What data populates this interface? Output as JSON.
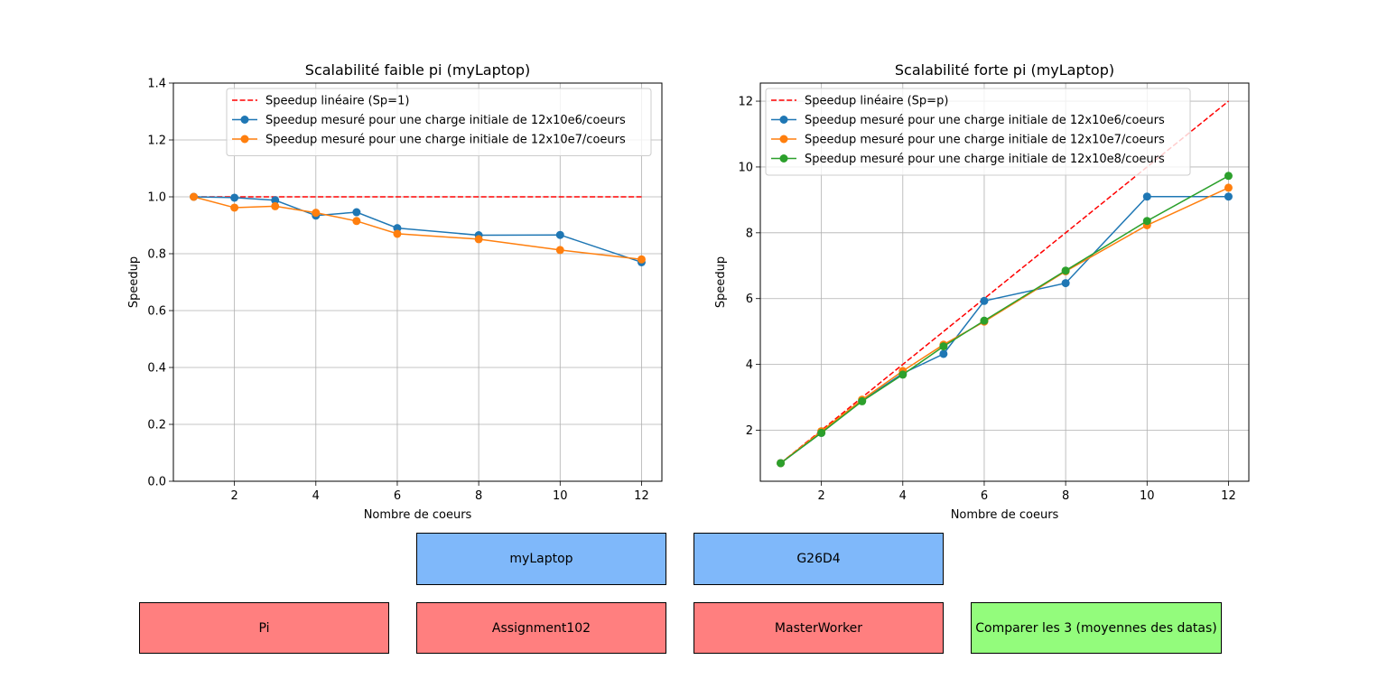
{
  "chart_data": [
    {
      "type": "line",
      "title": "Scalabilité faible pi (myLaptop)",
      "xlabel": "Nombre de coeurs",
      "ylabel": "Speedup",
      "xlim": [
        0.5,
        12.5
      ],
      "ylim": [
        0,
        1.4
      ],
      "xticks": [
        2,
        4,
        6,
        8,
        10,
        12
      ],
      "yticks": [
        0.0,
        0.2,
        0.4,
        0.6,
        0.8,
        1.0,
        1.2,
        1.4
      ],
      "grid": true,
      "legend_position": "top-right",
      "series": [
        {
          "name": "Speedup linéaire (Sp=1)",
          "color": "#ff0000",
          "dashed": true,
          "markers": false,
          "x": [
            1,
            12
          ],
          "y": [
            1.0,
            1.0
          ]
        },
        {
          "name": "Speedup mesuré pour une charge initiale de 12x10e6/coeurs",
          "color": "#1f77b4",
          "dashed": false,
          "markers": true,
          "x": [
            1,
            2,
            3,
            4,
            5,
            6,
            8,
            10,
            12
          ],
          "y": [
            1.0,
            0.997,
            0.988,
            0.934,
            0.946,
            0.89,
            0.865,
            0.866,
            0.77
          ]
        },
        {
          "name": "Speedup mesuré pour une charge initiale de 12x10e7/coeurs",
          "color": "#ff7f0e",
          "dashed": false,
          "markers": true,
          "x": [
            1,
            2,
            3,
            4,
            5,
            6,
            8,
            10,
            12
          ],
          "y": [
            1.0,
            0.962,
            0.967,
            0.944,
            0.915,
            0.87,
            0.851,
            0.813,
            0.78
          ]
        }
      ]
    },
    {
      "type": "line",
      "title": "Scalabilité forte pi (myLaptop)",
      "xlabel": "Nombre de coeurs",
      "ylabel": "Speedup",
      "xlim": [
        0.5,
        12.5
      ],
      "ylim": [
        0.45,
        12.55
      ],
      "xticks": [
        2,
        4,
        6,
        8,
        10,
        12
      ],
      "yticks": [
        2,
        4,
        6,
        8,
        10,
        12
      ],
      "grid": true,
      "legend_position": "top-left",
      "series": [
        {
          "name": "Speedup linéaire (Sp=p)",
          "color": "#ff0000",
          "dashed": true,
          "markers": false,
          "x": [
            1,
            12
          ],
          "y": [
            1,
            12
          ]
        },
        {
          "name": "Speedup mesuré pour une charge initiale de 12x10e6/coeurs",
          "color": "#1f77b4",
          "dashed": false,
          "markers": true,
          "x": [
            1,
            2,
            3,
            4,
            5,
            6,
            8,
            10,
            12
          ],
          "y": [
            1.0,
            1.92,
            2.9,
            3.73,
            4.32,
            5.93,
            6.47,
            9.1,
            9.1
          ]
        },
        {
          "name": "Speedup mesuré pour une charge initiale de 12x10e7/coeurs",
          "color": "#ff7f0e",
          "dashed": false,
          "markers": true,
          "x": [
            1,
            2,
            3,
            4,
            5,
            6,
            8,
            10,
            12
          ],
          "y": [
            1.0,
            1.97,
            2.93,
            3.8,
            4.6,
            5.3,
            6.83,
            8.23,
            9.37
          ]
        },
        {
          "name": "Speedup mesuré pour une charge initiale de 12x10e8/coeurs",
          "color": "#2ca02c",
          "dashed": false,
          "markers": true,
          "x": [
            1,
            2,
            3,
            4,
            5,
            6,
            8,
            10,
            12
          ],
          "y": [
            1.0,
            1.92,
            2.88,
            3.69,
            4.55,
            5.33,
            6.85,
            8.36,
            9.73
          ]
        }
      ]
    }
  ],
  "buttons": {
    "mylaptop": {
      "label": "myLaptop",
      "color": "#7fb8fa"
    },
    "g26d4": {
      "label": "G26D4",
      "color": "#7fb8fa"
    },
    "pi": {
      "label": "Pi",
      "color": "#ff7f7f"
    },
    "assignment102": {
      "label": "Assignment102",
      "color": "#ff7f7f"
    },
    "masterworker": {
      "label": "MasterWorker",
      "color": "#ff7f7f"
    },
    "compare": {
      "label": "Comparer les 3 (moyennes des datas)",
      "color": "#93fc7c"
    }
  }
}
